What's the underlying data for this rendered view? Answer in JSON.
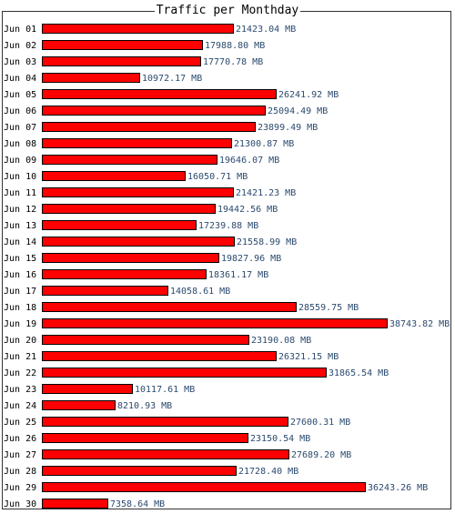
{
  "chart_data": {
    "type": "bar",
    "orientation": "horizontal",
    "title": "Traffic per Monthday",
    "unit": "MB",
    "categories": [
      "Jun 01",
      "Jun 02",
      "Jun 03",
      "Jun 04",
      "Jun 05",
      "Jun 06",
      "Jun 07",
      "Jun 08",
      "Jun 09",
      "Jun 10",
      "Jun 11",
      "Jun 12",
      "Jun 13",
      "Jun 14",
      "Jun 15",
      "Jun 16",
      "Jun 17",
      "Jun 18",
      "Jun 19",
      "Jun 20",
      "Jun 21",
      "Jun 22",
      "Jun 23",
      "Jun 24",
      "Jun 25",
      "Jun 26",
      "Jun 27",
      "Jun 28",
      "Jun 29",
      "Jun 30"
    ],
    "values": [
      21423.04,
      17988.8,
      17770.78,
      10972.17,
      26241.92,
      25094.49,
      23899.49,
      21300.87,
      19646.07,
      16050.71,
      21421.23,
      19442.56,
      17239.88,
      21558.99,
      19827.96,
      18361.17,
      14058.61,
      28559.75,
      38743.82,
      23190.08,
      26321.15,
      31865.54,
      10117.61,
      8210.93,
      27600.31,
      23150.54,
      27689.2,
      21728.4,
      36243.26,
      7358.64
    ],
    "value_labels": [
      "21423.04 MB",
      "17988.80 MB",
      "17770.78 MB",
      "10972.17 MB",
      "26241.92 MB",
      "25094.49 MB",
      "23899.49 MB",
      "21300.87 MB",
      "19646.07 MB",
      "16050.71 MB",
      "21421.23 MB",
      "19442.56 MB",
      "17239.88 MB",
      "21558.99 MB",
      "19827.96 MB",
      "18361.17 MB",
      "14058.61 MB",
      "28559.75 MB",
      "38743.82 MB",
      "23190.08 MB",
      "26321.15 MB",
      "31865.54 MB",
      "10117.61 MB",
      "8210.93 MB",
      "27600.31 MB",
      "23150.54 MB",
      "27689.20 MB",
      "21728.40 MB",
      "36243.26 MB",
      "7358.64 MB"
    ],
    "bar_color": "#ff0000",
    "bar_border_color": "#000000",
    "grid": false,
    "legend": "none"
  }
}
